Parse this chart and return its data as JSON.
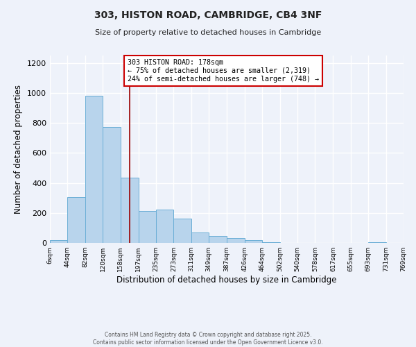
{
  "title": "303, HISTON ROAD, CAMBRIDGE, CB4 3NF",
  "subtitle": "Size of property relative to detached houses in Cambridge",
  "xlabel": "Distribution of detached houses by size in Cambridge",
  "ylabel": "Number of detached properties",
  "bar_values": [
    20,
    305,
    980,
    775,
    435,
    215,
    220,
    160,
    70,
    48,
    32,
    18,
    5,
    0,
    0,
    0,
    0,
    0,
    3,
    0
  ],
  "bin_edges": [
    6,
    44,
    82,
    120,
    158,
    197,
    235,
    273,
    311,
    349,
    387,
    426,
    464,
    502,
    540,
    578,
    617,
    655,
    693,
    731,
    769
  ],
  "tick_labels": [
    "6sqm",
    "44sqm",
    "82sqm",
    "120sqm",
    "158sqm",
    "197sqm",
    "235sqm",
    "273sqm",
    "311sqm",
    "349sqm",
    "387sqm",
    "426sqm",
    "464sqm",
    "502sqm",
    "540sqm",
    "578sqm",
    "617sqm",
    "655sqm",
    "693sqm",
    "731sqm",
    "769sqm"
  ],
  "bar_fill_color": "#b8d4ec",
  "bar_edge_color": "#6aaed6",
  "property_line_x": 178,
  "property_line_color": "#990000",
  "annotation_text": "303 HISTON ROAD: 178sqm\n← 75% of detached houses are smaller (2,319)\n24% of semi-detached houses are larger (748) →",
  "annotation_box_color": "#ffffff",
  "annotation_box_edge": "#cc0000",
  "ylim": [
    0,
    1250
  ],
  "yticks": [
    0,
    200,
    400,
    600,
    800,
    1000,
    1200
  ],
  "bg_color": "#eef2fa",
  "grid_color": "#ffffff",
  "footer_line1": "Contains HM Land Registry data © Crown copyright and database right 2025.",
  "footer_line2": "Contains public sector information licensed under the Open Government Licence v3.0."
}
